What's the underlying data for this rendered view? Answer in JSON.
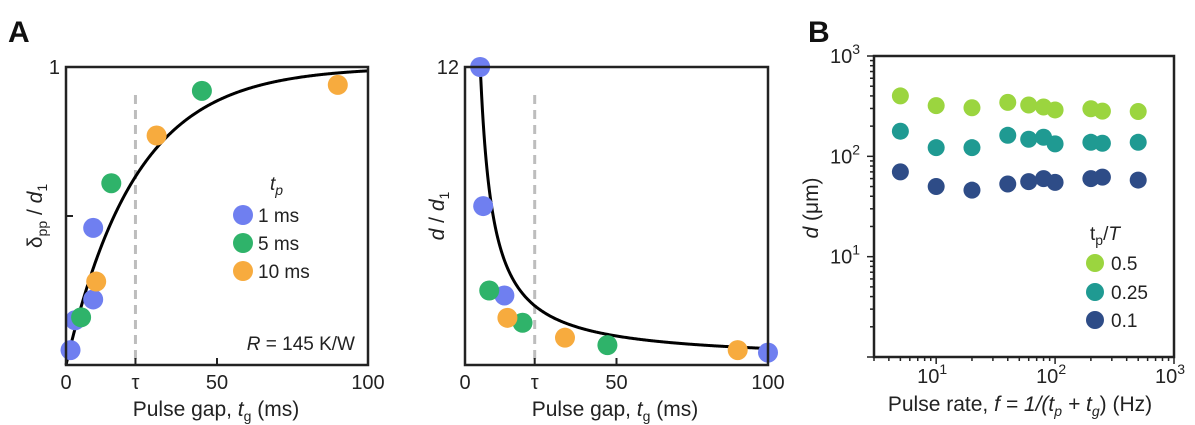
{
  "panels": {
    "a": "A",
    "b": "B"
  },
  "colors": {
    "ms1": "#6f7ff0",
    "ms5": "#2fb36a",
    "ms10": "#f7ab3e",
    "tau_line": "#bdbdbd",
    "fit": "#000000",
    "r05": "#9bd53f",
    "r025": "#1f9a92",
    "r01": "#2e4c87"
  },
  "chart_data": [
    {
      "type": "scatter",
      "id": "chart1",
      "xlabel_pre": "Pulse gap, ",
      "xlabel_var": "t",
      "xlabel_sub": "g",
      "xlabel_post": " (ms)",
      "ylabel_main": "δ",
      "ylabel_sub": "pp",
      "ylabel_mid": " / ",
      "ylabel_var": "d",
      "ylabel_sub2": "1",
      "xlim": [
        0,
        100
      ],
      "ylim": [
        0,
        1
      ],
      "xticks": [
        {
          "v": 0,
          "label": "0"
        },
        {
          "v": 23,
          "label": "τ"
        },
        {
          "v": 50,
          "label": "50"
        },
        {
          "v": 100,
          "label": "100"
        }
      ],
      "yticks": [
        {
          "v": 0,
          "label": ""
        },
        {
          "v": 0.5,
          "label": ""
        },
        {
          "v": 1,
          "label": "1"
        }
      ],
      "tau": 23,
      "legend_title_var": "t",
      "legend_title_sub": "p",
      "annotation_var": "R",
      "annotation_rest": " = 145 K/W",
      "series": [
        {
          "name": "1 ms",
          "points": [
            [
              1.5,
              0.05
            ],
            [
              3,
              0.15
            ],
            [
              9,
              0.22
            ],
            [
              9,
              0.46
            ]
          ]
        },
        {
          "name": "5 ms",
          "points": [
            [
              5,
              0.16
            ],
            [
              15,
              0.61
            ],
            [
              45,
              0.92
            ]
          ]
        },
        {
          "name": "10 ms",
          "points": [
            [
              10,
              0.28
            ],
            [
              30,
              0.77
            ],
            [
              90,
              0.94
            ]
          ]
        }
      ]
    },
    {
      "type": "scatter",
      "id": "chart2",
      "xlabel_pre": "Pulse gap, ",
      "xlabel_var": "t",
      "xlabel_sub": "g",
      "xlabel_post": " (ms)",
      "ylabel_var": "d",
      "ylabel_mid": " / ",
      "ylabel_var2": "d",
      "ylabel_sub2": "1",
      "xlim": [
        0,
        100
      ],
      "ylim": [
        0,
        12
      ],
      "xticks": [
        {
          "v": 0,
          "label": "0"
        },
        {
          "v": 23,
          "label": "τ"
        },
        {
          "v": 50,
          "label": "50"
        },
        {
          "v": 100,
          "label": "100"
        }
      ],
      "yticks": [
        {
          "v": 12,
          "label": "12"
        }
      ],
      "tau": 23,
      "series": [
        {
          "name": "1 ms",
          "points": [
            [
              5,
              12
            ],
            [
              6,
              6.4
            ],
            [
              13,
              2.8
            ],
            [
              100,
              0.5
            ]
          ]
        },
        {
          "name": "5 ms",
          "points": [
            [
              8,
              3.0
            ],
            [
              19,
              1.7
            ],
            [
              47,
              0.8
            ]
          ]
        },
        {
          "name": "10 ms",
          "points": [
            [
              14,
              1.9
            ],
            [
              33,
              1.1
            ],
            [
              90,
              0.6
            ]
          ]
        }
      ]
    },
    {
      "type": "scatter",
      "id": "chart3",
      "log_x": true,
      "log_y": true,
      "xlabel_pre": "Pulse rate, ",
      "xlabel_var": "f",
      "xlabel_mid": " = 1/(",
      "xlabel_v1": "t",
      "xlabel_s1": "p",
      "xlabel_plus": " + ",
      "xlabel_v2": "t",
      "xlabel_s2": "g",
      "xlabel_post": ") (Hz)",
      "ylabel_var": "d",
      "ylabel_unit": " (μm)",
      "xlim": [
        3,
        1000
      ],
      "ylim": [
        1,
        1000
      ],
      "xticks": [
        {
          "v": 10,
          "base": "10",
          "exp": "1"
        },
        {
          "v": 100,
          "base": "10",
          "exp": "2"
        },
        {
          "v": 1000,
          "base": "10",
          "exp": "3"
        }
      ],
      "yticks": [
        {
          "v": 10,
          "base": "10",
          "exp": "1"
        },
        {
          "v": 100,
          "base": "10",
          "exp": "2"
        },
        {
          "v": 1000,
          "base": "10",
          "exp": "3"
        }
      ],
      "legend_title_main": "t",
      "legend_title_sub": "p",
      "legend_title_post": "/",
      "legend_title_var": "T",
      "series": [
        {
          "name": "0.5",
          "points": [
            [
              5,
              400
            ],
            [
              10,
              320
            ],
            [
              20,
              305
            ],
            [
              40,
              345
            ],
            [
              60,
              325
            ],
            [
              80,
              310
            ],
            [
              100,
              290
            ],
            [
              200,
              298
            ],
            [
              250,
              282
            ],
            [
              500,
              280
            ]
          ]
        },
        {
          "name": "0.25",
          "points": [
            [
              5,
              178
            ],
            [
              10,
              122
            ],
            [
              20,
              122
            ],
            [
              40,
              162
            ],
            [
              60,
              148
            ],
            [
              80,
              155
            ],
            [
              100,
              133
            ],
            [
              200,
              138
            ],
            [
              250,
              135
            ],
            [
              500,
              138
            ]
          ]
        },
        {
          "name": "0.1",
          "points": [
            [
              5,
              70
            ],
            [
              10,
              50
            ],
            [
              20,
              46
            ],
            [
              40,
              53
            ],
            [
              60,
              56
            ],
            [
              80,
              60
            ],
            [
              100,
              55
            ],
            [
              200,
              60
            ],
            [
              250,
              62
            ],
            [
              500,
              58
            ]
          ]
        }
      ]
    }
  ]
}
